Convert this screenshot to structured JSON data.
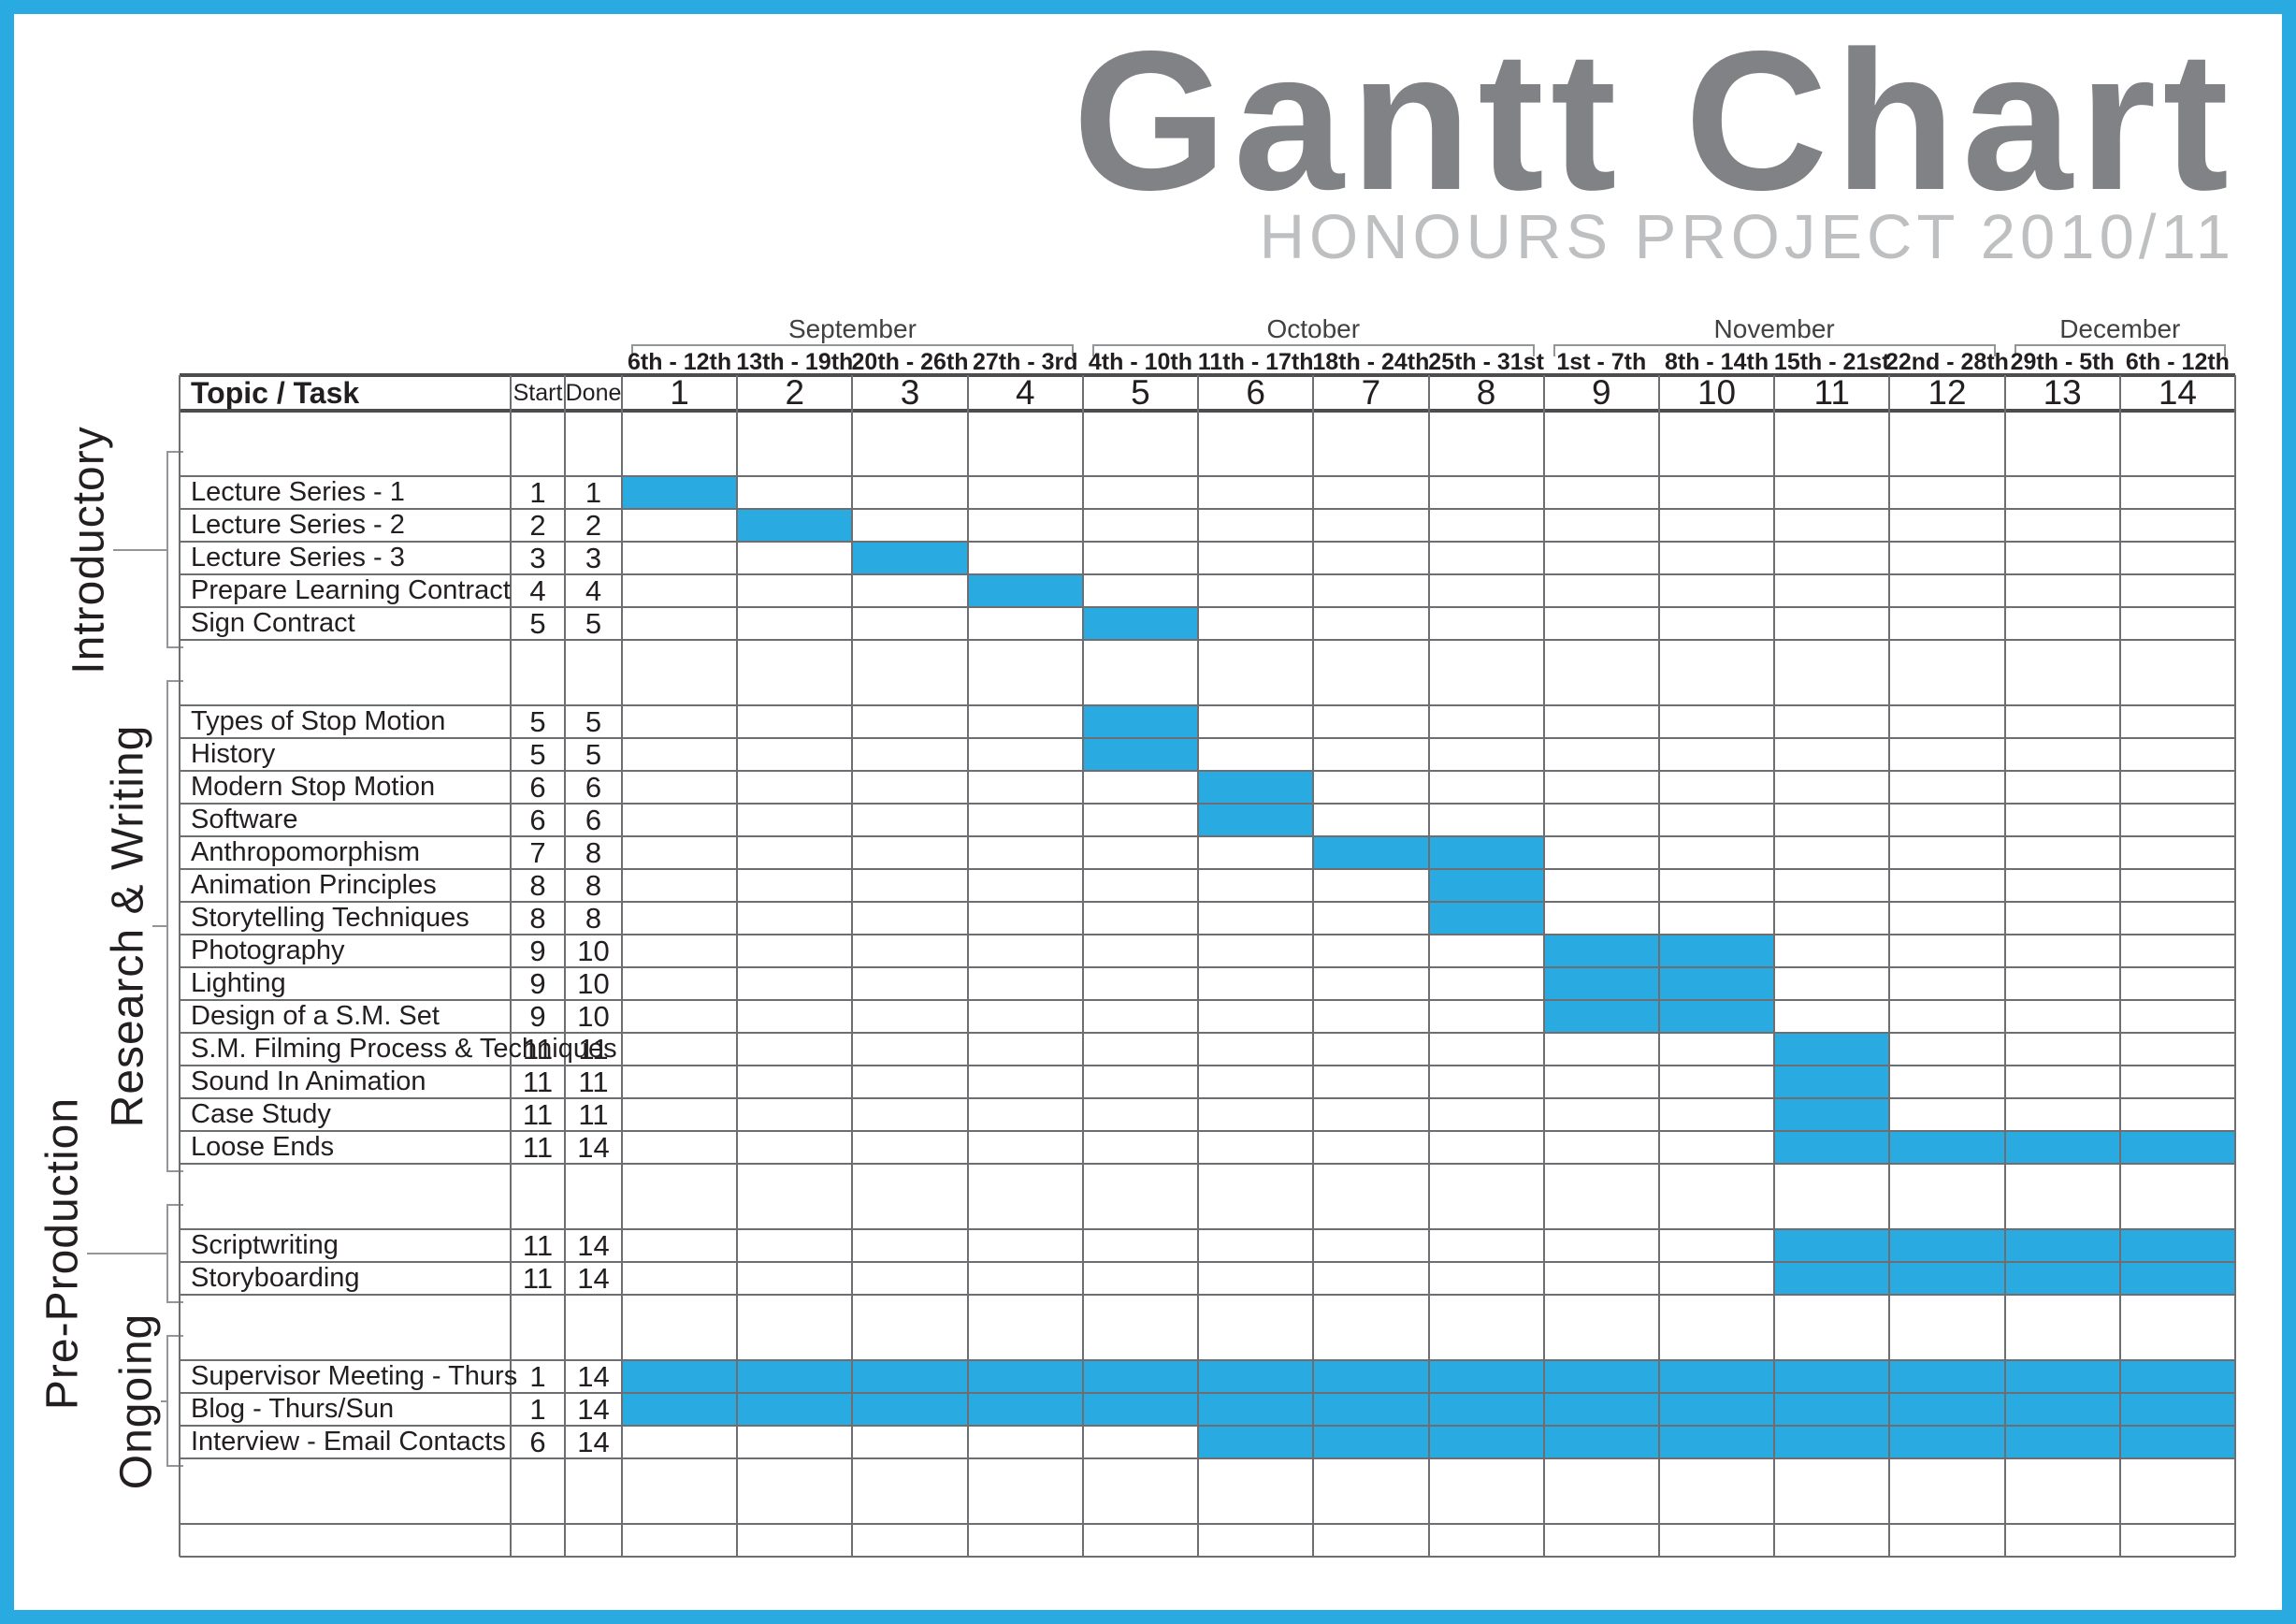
{
  "page": {
    "border_color": "#29ABE2",
    "background": "#ffffff"
  },
  "title": {
    "text": "Gantt Chart",
    "subtitle": "HONOURS PROJECT 2010/11",
    "title_color": "#808285",
    "subtitle_color": "#BDBFC1"
  },
  "table": {
    "topic_header": "Topic / Task",
    "start_header": "Start",
    "done_header": "Done",
    "months": [
      {
        "name": "September",
        "from_week": 1,
        "to_week": 4
      },
      {
        "name": "October",
        "from_week": 5,
        "to_week": 8
      },
      {
        "name": "November",
        "from_week": 9,
        "to_week": 12
      },
      {
        "name": "December",
        "from_week": 13,
        "to_week": 14
      }
    ],
    "weeks": [
      {
        "num": "1",
        "range": "6th - 12th"
      },
      {
        "num": "2",
        "range": "13th - 19th"
      },
      {
        "num": "3",
        "range": "20th - 26th"
      },
      {
        "num": "4",
        "range": "27th - 3rd"
      },
      {
        "num": "5",
        "range": "4th - 10th"
      },
      {
        "num": "6",
        "range": "11th - 17th"
      },
      {
        "num": "7",
        "range": "18th - 24th"
      },
      {
        "num": "8",
        "range": "25th - 31st"
      },
      {
        "num": "9",
        "range": "1st - 7th"
      },
      {
        "num": "10",
        "range": "8th - 14th"
      },
      {
        "num": "11",
        "range": "15th - 21st"
      },
      {
        "num": "12",
        "range": "22nd - 28th"
      },
      {
        "num": "13",
        "range": "29th - 5th"
      },
      {
        "num": "14",
        "range": "6th - 12th"
      }
    ]
  },
  "chart_data": {
    "type": "gantt",
    "bar_color": "#29ABE2",
    "grid_color": "#6D6E71",
    "total_weeks": 14,
    "groups": [
      {
        "label": "Introductory",
        "tasks": [
          {
            "name": "Lecture Series - 1",
            "start": 1,
            "done": 1
          },
          {
            "name": "Lecture Series - 2",
            "start": 2,
            "done": 2
          },
          {
            "name": "Lecture Series - 3",
            "start": 3,
            "done": 3
          },
          {
            "name": "Prepare Learning Contract",
            "start": 4,
            "done": 4
          },
          {
            "name": "Sign Contract",
            "start": 5,
            "done": 5
          }
        ]
      },
      {
        "label": "Research & Writing",
        "tasks": [
          {
            "name": "Types of Stop Motion",
            "start": 5,
            "done": 5
          },
          {
            "name": "History",
            "start": 5,
            "done": 5
          },
          {
            "name": "Modern Stop Motion",
            "start": 6,
            "done": 6
          },
          {
            "name": "Software",
            "start": 6,
            "done": 6
          },
          {
            "name": "Anthropomorphism",
            "start": 7,
            "done": 8
          },
          {
            "name": "Animation Principles",
            "start": 8,
            "done": 8
          },
          {
            "name": "Storytelling Techniques",
            "start": 8,
            "done": 8
          },
          {
            "name": "Photography",
            "start": 9,
            "done": 10
          },
          {
            "name": "Lighting",
            "start": 9,
            "done": 10
          },
          {
            "name": "Design of a S.M. Set",
            "start": 9,
            "done": 10
          },
          {
            "name": "S.M. Filming Process & Techniques",
            "start": 11,
            "done": 11
          },
          {
            "name": "Sound In Animation",
            "start": 11,
            "done": 11
          },
          {
            "name": "Case Study",
            "start": 11,
            "done": 11
          },
          {
            "name": "Loose Ends",
            "start": 11,
            "done": 14
          }
        ]
      },
      {
        "label": "Pre-Production",
        "tasks": [
          {
            "name": "Scriptwriting",
            "start": 11,
            "done": 14
          },
          {
            "name": "Storyboarding",
            "start": 11,
            "done": 14
          }
        ]
      },
      {
        "label": "Ongoing",
        "tasks": [
          {
            "name": "Supervisor Meeting - Thurs",
            "start": 1,
            "done": 14
          },
          {
            "name": "Blog - Thurs/Sun",
            "start": 1,
            "done": 14
          },
          {
            "name": "Interview - Email Contacts",
            "start": 6,
            "done": 14
          }
        ]
      }
    ]
  }
}
